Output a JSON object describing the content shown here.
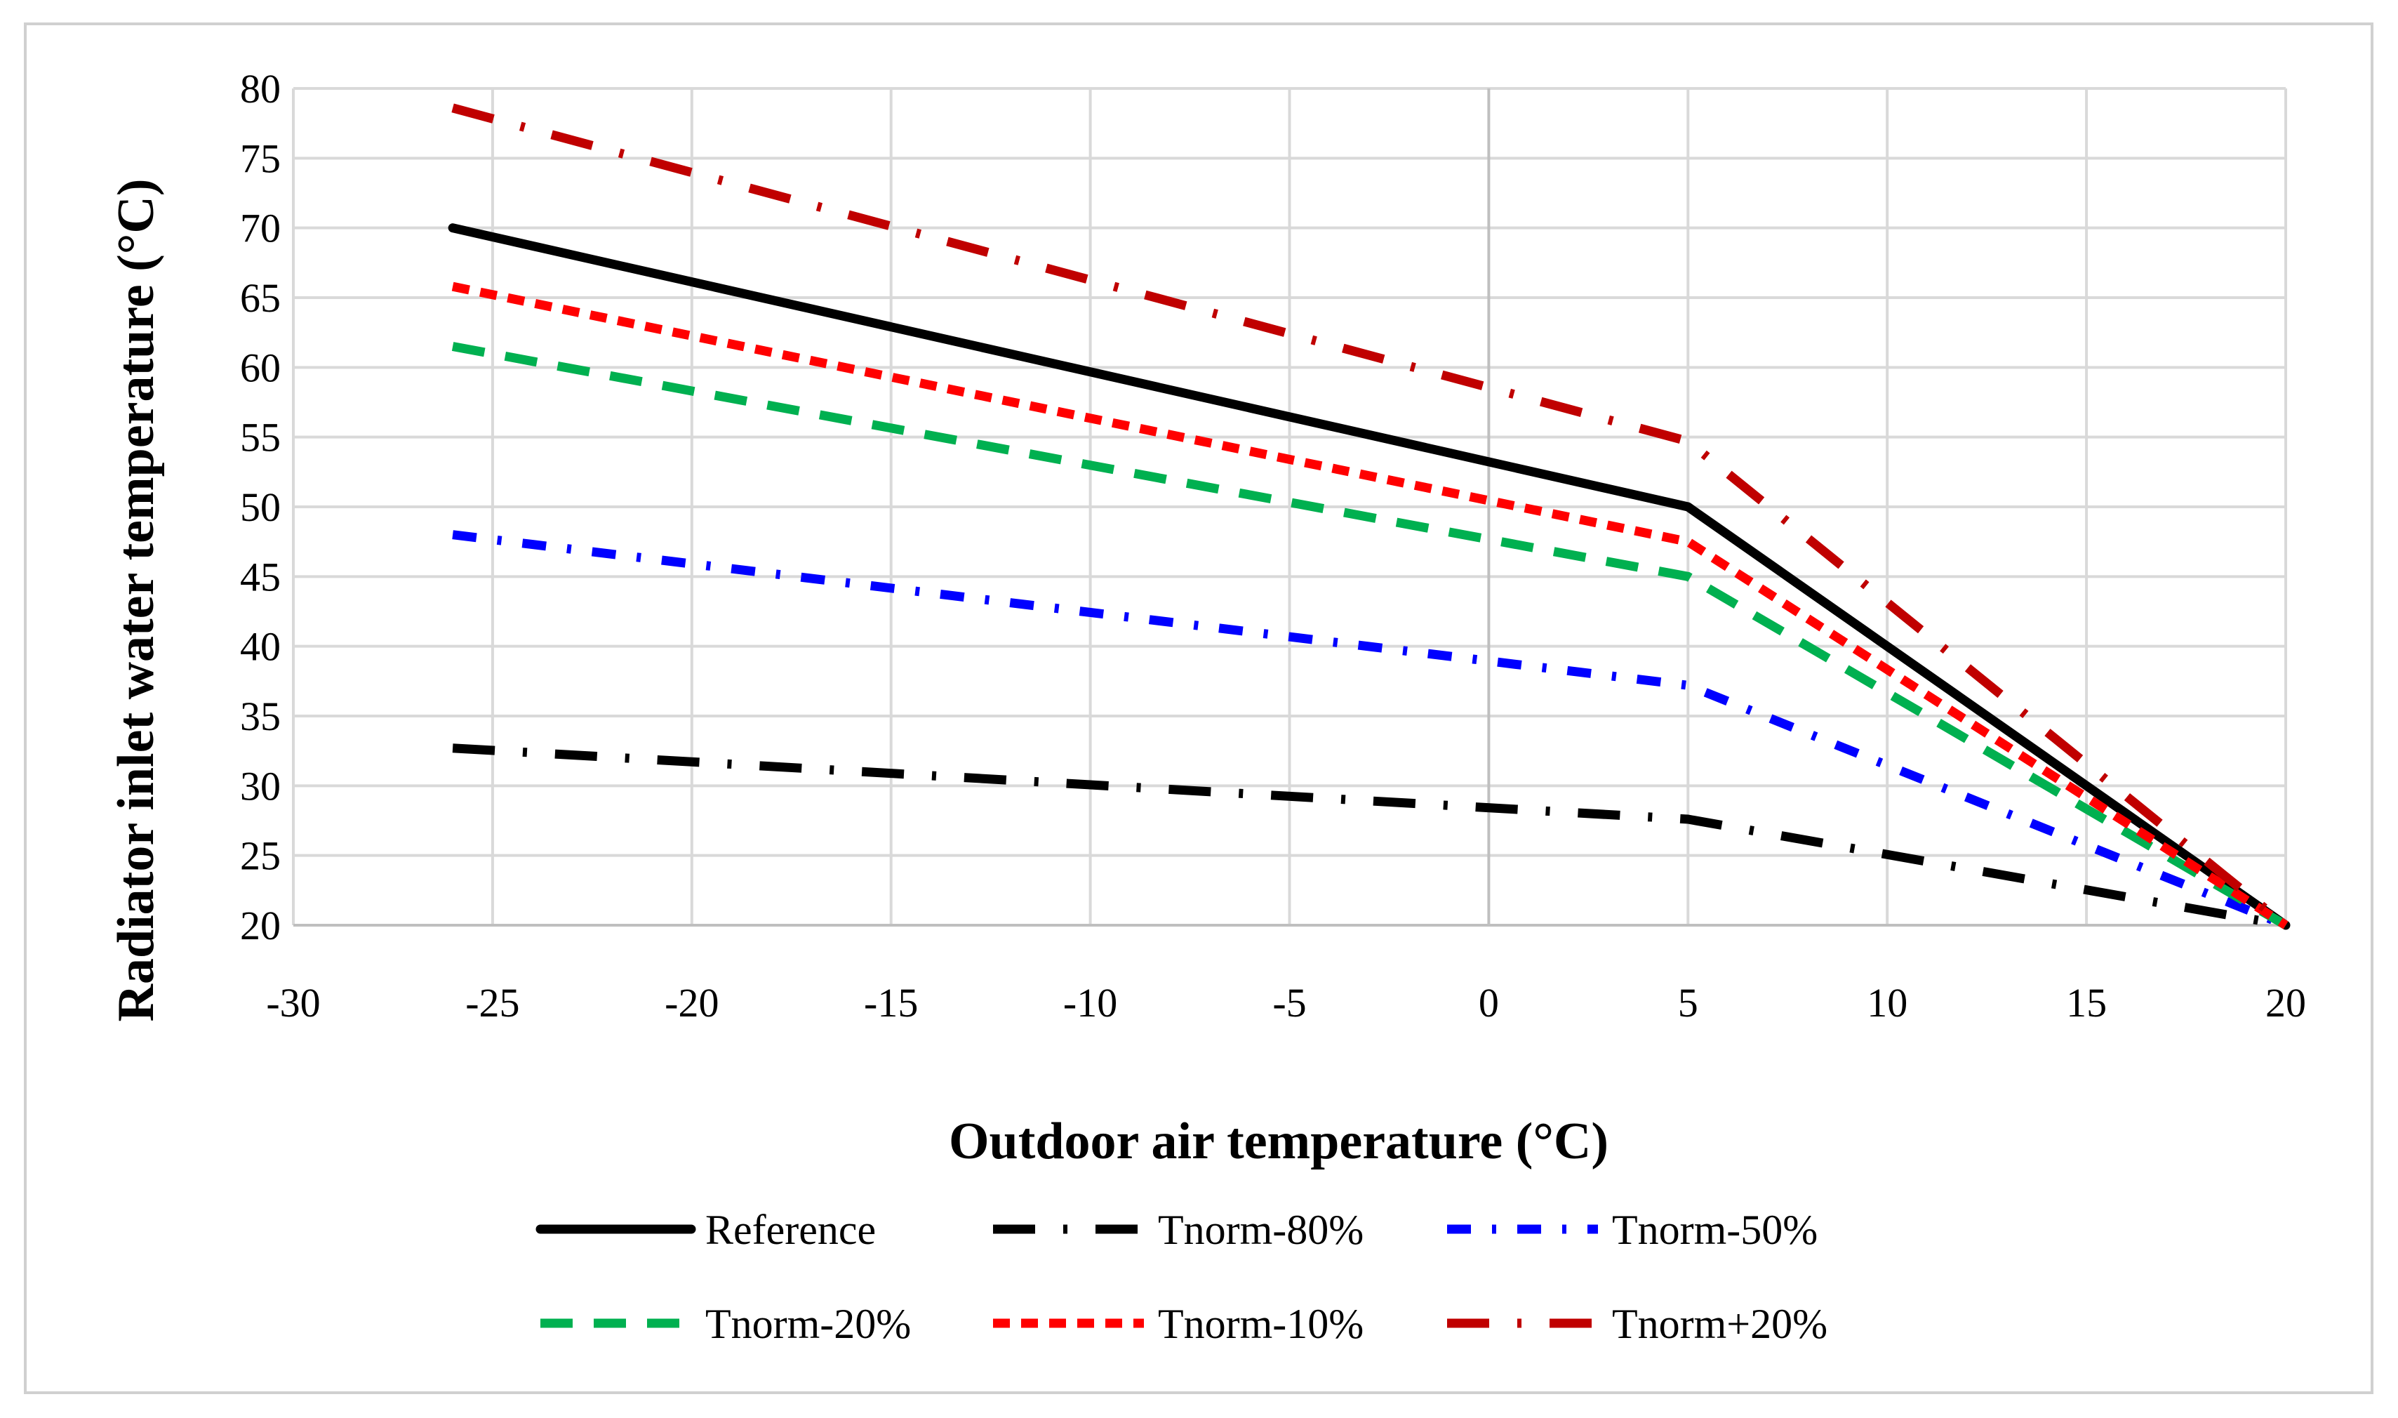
{
  "chart_data": {
    "type": "line",
    "title": "",
    "xlabel": "Outdoor air temperature (°C)",
    "ylabel": "Radiator inlet water temperature (°C)",
    "xlim": [
      -30,
      20
    ],
    "ylim": [
      20,
      80
    ],
    "xticks": [
      -30,
      -25,
      -20,
      -15,
      -10,
      -5,
      0,
      5,
      10,
      15,
      20
    ],
    "yticks": [
      20,
      25,
      30,
      35,
      40,
      45,
      50,
      55,
      60,
      65,
      70,
      75,
      80
    ],
    "xtick_labels": [
      "-30",
      "-25",
      "-20",
      "-15",
      "-10",
      "-5",
      "0",
      "5",
      "10",
      "15",
      "20"
    ],
    "ytick_labels": [
      "20",
      "25",
      "30",
      "35",
      "40",
      "45",
      "50",
      "55",
      "60",
      "65",
      "70",
      "75",
      "80"
    ],
    "grid": true,
    "legend_position": "bottom",
    "series": [
      {
        "name": "Reference",
        "color": "#000000",
        "style": "solid",
        "x": [
          -26,
          5,
          20
        ],
        "y": [
          70,
          50,
          20
        ]
      },
      {
        "name": "Tnorm-80%",
        "color": "#000000",
        "style": "long-dash-dot",
        "x": [
          -26,
          5,
          20
        ],
        "y": [
          32.7,
          27.6,
          20
        ]
      },
      {
        "name": "Tnorm-50%",
        "color": "#0000ff",
        "style": "dash-dot",
        "x": [
          -26,
          5,
          20
        ],
        "y": [
          48,
          37.2,
          20
        ]
      },
      {
        "name": "Tnorm-20%",
        "color": "#00b050",
        "style": "dash",
        "x": [
          -26,
          5,
          20
        ],
        "y": [
          61.5,
          45,
          20
        ]
      },
      {
        "name": "Tnorm-10%",
        "color": "#ff0000",
        "style": "short-dash",
        "x": [
          -26,
          5,
          20
        ],
        "y": [
          65.8,
          47.5,
          20
        ]
      },
      {
        "name": "Tnorm+20%",
        "color": "#c00000",
        "style": "long-dash-dot",
        "x": [
          -26,
          5,
          20
        ],
        "y": [
          78.6,
          54.7,
          20
        ]
      }
    ]
  }
}
